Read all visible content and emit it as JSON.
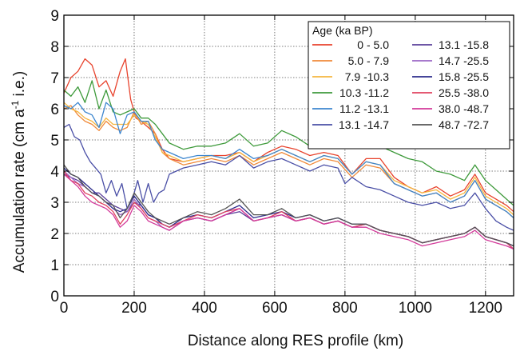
{
  "chart_data": {
    "type": "line",
    "title": "",
    "xlabel": "Distance along RES profile (km)",
    "ylabel": "Accumulation rate (cm a",
    "ylabel_sup": "-1",
    "ylabel_tail": " i.e.)",
    "xlim": [
      0,
      1280
    ],
    "ylim": [
      0,
      9
    ],
    "xticks": [
      0,
      200,
      400,
      600,
      800,
      1000,
      1200
    ],
    "yticks": [
      0,
      1,
      2,
      3,
      4,
      5,
      6,
      7,
      8,
      9
    ],
    "grid": true,
    "legend": {
      "title": "Age (ka  BP)",
      "placement": "top-right",
      "columns": 2
    },
    "series": [
      {
        "name": "0 -  5.0",
        "color": "#e8432d",
        "x": [
          0,
          20,
          40,
          60,
          80,
          100,
          120,
          140,
          160,
          175,
          190,
          205,
          220,
          240,
          260,
          280,
          300,
          340,
          380,
          420,
          460,
          500,
          540,
          580,
          620,
          660,
          700,
          740,
          780,
          820,
          860,
          900,
          940,
          980,
          1020,
          1060,
          1100,
          1140,
          1170,
          1200,
          1230,
          1260,
          1280
        ],
        "y": [
          6.5,
          7.0,
          7.2,
          7.6,
          7.4,
          6.7,
          6.9,
          6.4,
          7.2,
          7.6,
          6.3,
          5.7,
          5.6,
          5.4,
          5.2,
          4.7,
          4.4,
          4.3,
          4.4,
          4.5,
          4.5,
          4.6,
          4.3,
          4.6,
          4.8,
          4.7,
          4.5,
          4.6,
          4.5,
          3.9,
          4.4,
          4.4,
          3.8,
          3.5,
          3.3,
          3.5,
          3.2,
          3.4,
          3.9,
          3.3,
          3.1,
          2.9,
          2.7
        ]
      },
      {
        "name": "5.0  - 7.9",
        "color": "#f08a3a",
        "x": [
          0,
          20,
          40,
          60,
          80,
          100,
          120,
          140,
          160,
          180,
          200,
          220,
          240,
          260,
          280,
          300,
          340,
          380,
          420,
          460,
          500,
          540,
          580,
          620,
          660,
          700,
          740,
          780,
          820,
          860,
          900,
          940,
          980,
          1020,
          1060,
          1100,
          1140,
          1170,
          1200,
          1230,
          1260,
          1280
        ],
        "y": [
          6.0,
          6.1,
          5.8,
          5.6,
          5.5,
          5.3,
          5.6,
          5.4,
          5.3,
          5.4,
          5.9,
          5.5,
          5.6,
          5.2,
          4.6,
          4.4,
          4.2,
          4.3,
          4.4,
          4.3,
          4.5,
          4.2,
          4.4,
          4.6,
          4.4,
          4.2,
          4.4,
          4.3,
          3.8,
          4.2,
          4.1,
          3.6,
          3.4,
          3.2,
          3.3,
          3.0,
          3.2,
          3.7,
          3.1,
          2.9,
          2.7,
          2.5
        ]
      },
      {
        "name": "7.9  -10.3",
        "color": "#f5b63f",
        "x": [
          0,
          20,
          40,
          60,
          80,
          100,
          120,
          140,
          160,
          180,
          200,
          220,
          240,
          260,
          280,
          300,
          340,
          380,
          420,
          460,
          500,
          540,
          580,
          620,
          660,
          700,
          740,
          780,
          820,
          860,
          900,
          940,
          980,
          1020,
          1060,
          1100,
          1140,
          1170,
          1200,
          1230,
          1260,
          1280
        ],
        "y": [
          6.2,
          6.0,
          5.9,
          5.7,
          5.6,
          5.4,
          5.7,
          5.5,
          5.5,
          5.5,
          5.8,
          5.6,
          5.5,
          5.1,
          4.6,
          4.5,
          4.3,
          4.4,
          4.5,
          4.4,
          4.6,
          4.3,
          4.5,
          4.7,
          4.5,
          4.3,
          4.5,
          4.4,
          3.9,
          4.3,
          4.2,
          3.7,
          3.5,
          3.3,
          3.4,
          3.1,
          3.3,
          3.8,
          3.2,
          3.0,
          2.8,
          2.6
        ]
      },
      {
        "name": "10.3 -11.2",
        "color": "#3e9a3b",
        "x": [
          0,
          20,
          40,
          60,
          80,
          100,
          120,
          140,
          160,
          180,
          200,
          220,
          240,
          260,
          280,
          300,
          340,
          380,
          420,
          460,
          500,
          540,
          580,
          620,
          660,
          700,
          740,
          780,
          820,
          860,
          900,
          940,
          980,
          1020,
          1060,
          1100,
          1140,
          1170,
          1200,
          1230,
          1260,
          1280
        ],
        "y": [
          6.6,
          6.4,
          6.7,
          6.2,
          6.9,
          6.0,
          6.6,
          5.9,
          5.8,
          5.9,
          6.0,
          5.7,
          5.7,
          5.5,
          5.2,
          4.9,
          4.7,
          4.8,
          4.8,
          4.9,
          5.2,
          4.8,
          4.9,
          5.3,
          5.1,
          4.8,
          5.2,
          4.9,
          4.9,
          5.1,
          4.8,
          4.6,
          4.4,
          4.3,
          4.0,
          3.9,
          3.7,
          4.2,
          3.7,
          3.4,
          3.1,
          2.9
        ]
      },
      {
        "name": "11.2 -13.1",
        "color": "#3d86cf",
        "x": [
          0,
          20,
          40,
          60,
          80,
          100,
          120,
          140,
          160,
          180,
          200,
          220,
          240,
          260,
          280,
          300,
          340,
          380,
          420,
          460,
          500,
          540,
          580,
          620,
          660,
          700,
          740,
          780,
          820,
          860,
          900,
          940,
          980,
          1020,
          1060,
          1100,
          1140,
          1170,
          1200,
          1230,
          1260,
          1280
        ],
        "y": [
          6.1,
          6.0,
          6.2,
          5.9,
          5.8,
          5.4,
          6.2,
          6.0,
          5.2,
          5.8,
          5.9,
          5.6,
          5.6,
          5.0,
          4.7,
          4.6,
          4.4,
          4.5,
          4.5,
          4.4,
          4.7,
          4.4,
          4.5,
          4.7,
          4.5,
          4.3,
          4.5,
          4.4,
          3.9,
          4.3,
          4.2,
          3.6,
          3.4,
          3.2,
          3.3,
          3.0,
          3.2,
          3.7,
          3.1,
          2.9,
          2.7,
          2.5
        ]
      },
      {
        "name": "13.1 -14.7",
        "color": "#4a4fa6",
        "x": [
          0,
          15,
          30,
          45,
          60,
          75,
          90,
          105,
          120,
          135,
          150,
          165,
          180,
          195,
          210,
          225,
          240,
          255,
          270,
          285,
          300,
          340,
          380,
          420,
          460,
          500,
          540,
          580,
          620,
          660,
          700,
          740,
          780,
          800,
          820,
          860,
          900,
          940,
          980,
          1020,
          1060,
          1100,
          1140,
          1170,
          1200,
          1230,
          1260,
          1280
        ],
        "y": [
          5.4,
          5.5,
          5.1,
          5.0,
          4.6,
          4.3,
          4.1,
          3.9,
          3.3,
          3.7,
          3.2,
          3.6,
          2.8,
          3.1,
          3.7,
          3.0,
          3.6,
          3.0,
          3.3,
          3.4,
          3.9,
          4.1,
          4.2,
          4.3,
          4.2,
          4.5,
          4.1,
          4.3,
          4.4,
          4.2,
          4.0,
          4.2,
          4.1,
          3.6,
          3.8,
          3.5,
          3.4,
          3.2,
          3.0,
          2.9,
          3.0,
          2.8,
          2.9,
          3.3,
          2.8,
          2.4,
          2.2,
          2.1
        ]
      },
      {
        "name": "13.1 -15.8",
        "color": "#5a3f9a",
        "x": [
          0,
          20,
          40,
          60,
          80,
          100,
          120,
          140,
          160,
          180,
          200,
          220,
          240,
          260,
          280,
          300,
          340,
          380,
          420,
          460,
          500,
          540,
          580,
          620,
          660,
          700,
          740,
          780,
          820,
          860,
          900,
          940,
          980,
          1020,
          1060,
          1100,
          1140,
          1170,
          1200,
          1230,
          1260,
          1280
        ],
        "y": [
          3.9,
          3.8,
          3.7,
          3.5,
          3.3,
          3.3,
          3.1,
          2.9,
          2.8,
          2.7,
          3.0,
          2.9,
          2.6,
          2.5,
          2.3,
          2.2,
          2.4,
          2.5,
          2.4,
          2.6,
          2.7,
          2.4,
          2.5,
          2.6,
          2.4,
          2.5,
          2.3,
          2.4,
          2.2,
          2.3,
          2.1,
          2.0,
          1.9,
          1.7,
          1.8,
          1.9,
          2.0,
          2.2,
          1.9,
          1.8,
          1.7,
          1.6
        ]
      },
      {
        "name": "14.7 -25.5",
        "color": "#9b67c6",
        "x": [
          0,
          20,
          40,
          60,
          80,
          100,
          120,
          140,
          160,
          180,
          200,
          220,
          240,
          260,
          280,
          300,
          340,
          380,
          420,
          460,
          500,
          540,
          580,
          620,
          660,
          700,
          740,
          780,
          820,
          860,
          900,
          940,
          980,
          1020,
          1060,
          1100,
          1140,
          1170,
          1200,
          1230,
          1260,
          1280
        ],
        "y": [
          4.0,
          3.8,
          3.6,
          3.5,
          3.3,
          3.2,
          3.0,
          2.8,
          2.6,
          2.7,
          3.1,
          2.8,
          2.5,
          2.4,
          2.2,
          2.1,
          2.4,
          2.5,
          2.4,
          2.6,
          2.8,
          2.4,
          2.5,
          2.6,
          2.4,
          2.5,
          2.3,
          2.4,
          2.2,
          2.3,
          2.1,
          2.0,
          1.9,
          1.7,
          1.8,
          1.9,
          2.0,
          2.2,
          1.9,
          1.8,
          1.7,
          1.5
        ]
      },
      {
        "name": "15.8 -25.5",
        "color": "#2c2c8c",
        "x": [
          0,
          20,
          40,
          60,
          80,
          100,
          120,
          140,
          160,
          180,
          200,
          220,
          240,
          260,
          280,
          300,
          340,
          380,
          420,
          460,
          500,
          540,
          580,
          620,
          660,
          700,
          740,
          780,
          820,
          860,
          900,
          940,
          980,
          1020,
          1060,
          1100,
          1140,
          1170,
          1200,
          1230,
          1260,
          1280
        ],
        "y": [
          4.1,
          3.9,
          3.8,
          3.6,
          3.4,
          3.2,
          3.0,
          2.8,
          2.7,
          2.8,
          3.2,
          2.9,
          2.6,
          2.5,
          2.3,
          2.2,
          2.5,
          2.6,
          2.5,
          2.7,
          2.9,
          2.5,
          2.6,
          2.7,
          2.5,
          2.6,
          2.4,
          2.5,
          2.3,
          2.3,
          2.1,
          2.0,
          1.9,
          1.7,
          1.8,
          1.9,
          2.0,
          2.2,
          1.9,
          1.8,
          1.7,
          1.6
        ]
      },
      {
        "name": "25.5 -38.0",
        "color": "#e0435f",
        "x": [
          0,
          20,
          40,
          60,
          80,
          100,
          120,
          140,
          160,
          180,
          200,
          220,
          240,
          260,
          280,
          300,
          340,
          380,
          420,
          460,
          500,
          540,
          580,
          620,
          660,
          700,
          740,
          780,
          820,
          860,
          900,
          940,
          980,
          1020,
          1060,
          1100,
          1140,
          1170,
          1200,
          1230,
          1260,
          1280
        ],
        "y": [
          4.0,
          3.7,
          3.6,
          3.3,
          3.2,
          3.0,
          2.9,
          2.7,
          2.3,
          2.6,
          3.0,
          2.8,
          2.5,
          2.4,
          2.3,
          2.2,
          2.4,
          2.6,
          2.5,
          2.7,
          2.8,
          2.4,
          2.5,
          2.7,
          2.4,
          2.5,
          2.3,
          2.4,
          2.2,
          2.3,
          2.1,
          2.0,
          1.9,
          1.7,
          1.8,
          1.9,
          2.0,
          2.2,
          1.9,
          1.8,
          1.7,
          1.5
        ]
      },
      {
        "name": "38.0 -48.7",
        "color": "#d33a9a",
        "x": [
          0,
          20,
          40,
          60,
          80,
          100,
          120,
          140,
          160,
          180,
          200,
          220,
          240,
          260,
          280,
          300,
          340,
          380,
          420,
          460,
          500,
          540,
          580,
          620,
          660,
          700,
          740,
          780,
          820,
          860,
          900,
          940,
          980,
          1020,
          1060,
          1100,
          1140,
          1170,
          1200,
          1230,
          1260,
          1280
        ],
        "y": [
          3.9,
          3.7,
          3.5,
          3.2,
          3.0,
          2.9,
          2.8,
          2.6,
          2.2,
          2.4,
          2.9,
          2.7,
          2.4,
          2.3,
          2.2,
          2.1,
          2.4,
          2.5,
          2.4,
          2.6,
          2.8,
          2.4,
          2.5,
          2.6,
          2.4,
          2.5,
          2.3,
          2.4,
          2.2,
          2.2,
          2.0,
          1.9,
          1.8,
          1.6,
          1.7,
          1.8,
          1.9,
          2.1,
          1.8,
          1.7,
          1.6,
          1.5
        ]
      },
      {
        "name": "48.7 -72.7",
        "color": "#555555",
        "x": [
          0,
          20,
          40,
          60,
          80,
          100,
          120,
          140,
          160,
          180,
          200,
          220,
          240,
          260,
          280,
          300,
          340,
          380,
          420,
          460,
          500,
          540,
          580,
          620,
          660,
          700,
          740,
          780,
          820,
          860,
          900,
          940,
          980,
          1020,
          1060,
          1100,
          1140,
          1170,
          1200,
          1230,
          1260,
          1280
        ],
        "y": [
          4.2,
          3.9,
          3.8,
          3.5,
          3.3,
          3.2,
          3.0,
          2.9,
          2.5,
          2.8,
          3.3,
          3.0,
          2.7,
          2.5,
          2.4,
          2.3,
          2.5,
          2.7,
          2.6,
          2.8,
          3.1,
          2.6,
          2.6,
          2.8,
          2.5,
          2.6,
          2.4,
          2.5,
          2.3,
          2.3,
          2.1,
          2.0,
          1.9,
          1.7,
          1.8,
          1.9,
          2.0,
          2.2,
          1.9,
          1.8,
          1.7,
          1.6
        ]
      }
    ]
  }
}
